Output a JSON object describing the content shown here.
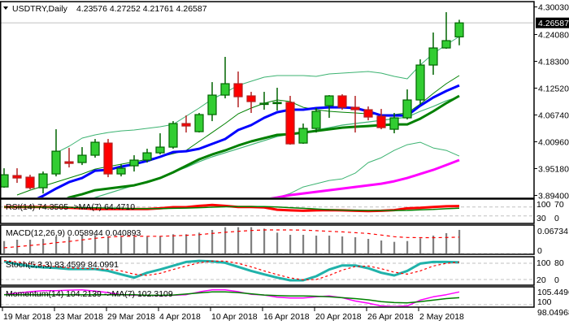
{
  "header": {
    "menu_icon": "triangle-down-icon",
    "symbol": "USDTRY,Daily",
    "ohlc": "4.23576 4.27252 4.21761 4.26587"
  },
  "colors": {
    "bull_body": "#32cd32",
    "bull_edge": "#006400",
    "bear_body": "#ff0000",
    "bear_edge": "#b22222",
    "blue_ma": "#0000ff",
    "green_ma": "#008000",
    "magenta_ma": "#ff00ff",
    "band": "#3cb371",
    "mid_band": "#008000",
    "grid_dash": "#c0c0c0",
    "macd_hist": "#808080",
    "stoch_main": "#20b2aa",
    "signal": "#ff0000"
  },
  "chart_data": {
    "type": "candlestick",
    "title": "USDTRY,Daily",
    "ylim": [
      3.894,
      4.3003
    ],
    "y_ticks": [
      "4.30030",
      "4.24080",
      "4.18300",
      "4.12520",
      "4.06740",
      "4.00960",
      "3.95180",
      "3.89400"
    ],
    "current_price": "4.26587",
    "current_price_value": 4.26587,
    "x_labels": [
      "19 Mar 2018",
      "23 Mar 2018",
      "29 Mar 2018",
      "4 Apr 2018",
      "10 Apr 2018",
      "16 Apr 2018",
      "20 Apr 2018",
      "26 Apr 2018",
      "2 May 2018"
    ],
    "candles_ohlc": [
      [
        3.9122,
        3.9525,
        3.9105,
        3.9385
      ],
      [
        3.9368,
        3.9525,
        3.921,
        3.9315
      ],
      [
        3.9333,
        3.9385,
        3.907,
        3.9105
      ],
      [
        3.9105,
        3.9455,
        3.8982,
        3.9403
      ],
      [
        3.9403,
        4.0366,
        3.935,
        3.9893
      ],
      [
        3.9665,
        3.9963,
        3.9543,
        3.963
      ],
      [
        3.9648,
        3.9981,
        3.9595,
        3.9806
      ],
      [
        3.9806,
        4.0156,
        3.9753,
        4.0086
      ],
      [
        4.0068,
        4.0156,
        3.9333,
        3.9403
      ],
      [
        3.9403,
        3.9613,
        3.935,
        3.9525
      ],
      [
        3.9578,
        3.9806,
        3.9455,
        3.9701
      ],
      [
        3.9701,
        3.9946,
        3.9648,
        3.9858
      ],
      [
        3.9858,
        4.0279,
        3.9823,
        3.9981
      ],
      [
        3.9981,
        4.0541,
        3.9946,
        4.0489
      ],
      [
        4.0489,
        4.0664,
        4.0296,
        4.0436
      ],
      [
        4.0314,
        4.0717,
        4.0296,
        4.0682
      ],
      [
        4.0682,
        4.1382,
        4.0541,
        4.1102
      ],
      [
        4.1102,
        4.1926,
        4.1032,
        4.1348
      ],
      [
        4.1348,
        4.161,
        4.0839,
        4.1067
      ],
      [
        4.1085,
        4.1172,
        4.0717,
        4.0962
      ],
      [
        4.0909,
        4.1172,
        4.0787,
        4.0927
      ],
      [
        4.0927,
        4.126,
        4.0769,
        4.0945
      ],
      [
        4.0945,
        4.1085,
        4.0033,
        4.0051
      ],
      [
        4.0068,
        4.0489,
        4.0051,
        4.0384
      ],
      [
        4.0384,
        4.0822,
        4.0296,
        4.0752
      ],
      [
        4.0874,
        4.1102,
        4.0612,
        4.1085
      ],
      [
        4.1085,
        4.112,
        4.0787,
        4.0839
      ],
      [
        4.0839,
        4.1085,
        4.0296,
        4.0787
      ],
      [
        4.0787,
        4.0857,
        4.0559,
        4.0629
      ],
      [
        4.0647,
        4.0804,
        4.0366,
        4.0401
      ],
      [
        4.0366,
        4.0717,
        4.0279,
        4.0612
      ],
      [
        4.0612,
        4.1225,
        4.0577,
        4.0997
      ],
      [
        4.0997,
        4.1873,
        4.0892,
        4.175
      ],
      [
        4.175,
        4.2451,
        4.154,
        4.2118
      ],
      [
        4.2118,
        4.2889,
        4.2101,
        4.2276
      ],
      [
        4.23576,
        4.27252,
        4.21761,
        4.26587
      ]
    ],
    "overlays": {
      "upper_band": [
        null,
        null,
        null,
        null,
        3.9858,
        4.0,
        4.0174,
        4.0244,
        4.0296,
        4.0331,
        4.0349,
        4.0384,
        4.0419,
        4.0471,
        4.0647,
        4.0822,
        4.1015,
        4.1155,
        4.1312,
        4.14,
        4.1488,
        4.1523,
        4.1523,
        4.1523,
        4.1505,
        4.1558,
        4.1575,
        4.1593,
        4.161,
        4.1575,
        4.1505,
        4.1453,
        4.175,
        4.1996,
        4.2189,
        4.2364
      ],
      "middle_band": [
        null,
        3.8948,
        3.9052,
        3.914,
        3.9228,
        3.9315,
        3.9403,
        3.9508,
        3.956,
        3.9613,
        3.9665,
        3.9718,
        3.9771,
        3.9841,
        3.9911,
        4.0104,
        4.0296,
        4.0489,
        4.0699,
        4.0822,
        4.0927,
        4.0997,
        4.0962,
        4.0839,
        4.0787,
        4.0752,
        4.0734,
        4.0717,
        4.0699,
        4.0682,
        4.0682,
        4.0717,
        4.0909,
        4.1137,
        4.1348,
        4.1523
      ],
      "lower_band": [
        null,
        null,
        null,
        null,
        null,
        null,
        null,
        null,
        null,
        null,
        null,
        null,
        null,
        null,
        null,
        null,
        null,
        null,
        null,
        null,
        3.886,
        3.8895,
        3.8982,
        3.9122,
        3.9193,
        3.9263,
        3.9298,
        3.942,
        3.9648,
        3.9753,
        3.9911,
        4.0033,
        4.0086,
        3.9963,
        3.9911,
        3.9788
      ],
      "blue_ma": [
        null,
        null,
        3.88,
        3.893,
        3.9087,
        3.9228,
        3.9315,
        3.9473,
        3.949,
        3.956,
        3.9613,
        3.9683,
        3.9771,
        3.9876,
        3.9893,
        3.9946,
        4.0051,
        4.0156,
        4.0349,
        4.0454,
        4.0612,
        4.0734,
        4.0787,
        4.0787,
        4.0822,
        4.0839,
        4.0839,
        4.0822,
        4.0752,
        4.0664,
        4.0664,
        4.0664,
        4.0874,
        4.105,
        4.119,
        4.1312
      ],
      "green_ma": [
        null,
        null,
        null,
        null,
        3.875,
        3.8895,
        3.8965,
        3.9052,
        3.9087,
        3.9122,
        3.9157,
        3.9228,
        3.9315,
        3.9438,
        3.9578,
        3.9718,
        3.9823,
        3.9911,
        4.0016,
        4.0104,
        4.0174,
        4.0244,
        4.0261,
        4.0296,
        4.0331,
        4.0366,
        4.0401,
        4.0419,
        4.0436,
        4.0454,
        4.0471,
        4.0471,
        4.0594,
        4.0752,
        4.0927,
        4.1085
      ],
      "light_ma": [
        null,
        null,
        null,
        null,
        null,
        null,
        3.88,
        3.8895,
        3.8982,
        3.907,
        3.9157,
        3.9245,
        3.9315,
        3.9438,
        3.9543,
        3.9665,
        3.9771,
        3.9858,
        3.9946,
        4.0033,
        4.0121,
        4.0209,
        4.0261,
        4.0296,
        4.0349,
        4.0401,
        4.0454,
        4.0489,
        4.0524,
        4.0559,
        4.0594,
        4.0629,
        4.0752,
        4.0857,
        4.0979,
        4.1067
      ],
      "magenta_ma": [
        null,
        null,
        null,
        null,
        null,
        null,
        null,
        null,
        null,
        null,
        null,
        null,
        null,
        null,
        null,
        null,
        null,
        null,
        null,
        null,
        3.885,
        3.8895,
        3.8947,
        3.8982,
        3.9017,
        3.9052,
        3.9087,
        3.9122,
        3.9157,
        3.9193,
        3.9245,
        3.9315,
        3.9403,
        3.949,
        3.9595,
        3.9701
      ]
    },
    "indicators": {
      "rsi": {
        "label": "RSI(14) 74.3505 ->MA(7) 64.4710",
        "levels": [
          70,
          30
        ],
        "range": [
          0,
          100
        ],
        "axis_labels": [
          "100",
          "70",
          "30",
          "0"
        ],
        "values": [
          70,
          70,
          70,
          70,
          69,
          66,
          64,
          61,
          61,
          61,
          61,
          61,
          64,
          69,
          69,
          75,
          79,
          75,
          70,
          70,
          68,
          58,
          55,
          53,
          55,
          56,
          55,
          53,
          52,
          53,
          56,
          64,
          66,
          70,
          73,
          74.35
        ],
        "ma": [
          70,
          70,
          70,
          69,
          69,
          68,
          67,
          66,
          65,
          64,
          63,
          63,
          63,
          64,
          65,
          67,
          69,
          71,
          72,
          72,
          72,
          70,
          67,
          64,
          61,
          58,
          56,
          55,
          54,
          54,
          54,
          55,
          57,
          59,
          62,
          64.47
        ]
      },
      "macd": {
        "label": "MACD(12,26,9) 0.058944 0.040893",
        "range": [
          0,
          0.06734
        ],
        "axis_labels": [
          "0.06734",
          "0"
        ],
        "histogram": [
          0.0311,
          0.0345,
          0.0345,
          0.0365,
          0.0426,
          0.0426,
          0.046,
          0.046,
          0.0433,
          0.042,
          0.042,
          0.042,
          0.0433,
          0.0481,
          0.0481,
          0.0521,
          0.0589,
          0.0657,
          0.0657,
          0.0657,
          0.0622,
          0.0521,
          0.0467,
          0.0467,
          0.0447,
          0.0447,
          0.0426,
          0.0406,
          0.0365,
          0.0325,
          0.0291,
          0.0311,
          0.0379,
          0.0447,
          0.0508,
          0.058944
        ],
        "signal": [
          0.0142,
          0.017,
          0.02,
          0.023,
          0.027,
          0.03,
          0.034,
          0.0379,
          0.041,
          0.043,
          0.0433,
          0.043,
          0.043,
          0.044,
          0.0455,
          0.047,
          0.0501,
          0.053,
          0.0555,
          0.0575,
          0.0589,
          0.0589,
          0.0589,
          0.0585,
          0.057,
          0.0555,
          0.054,
          0.052,
          0.05,
          0.046,
          0.042,
          0.04,
          0.0395,
          0.0395,
          0.04,
          0.040893
        ]
      },
      "stoch": {
        "label": "Stoch(5,3,3) 83.4599 84.0991",
        "levels": [
          80,
          20
        ],
        "range": [
          0,
          100
        ],
        "axis_labels": [
          "100",
          "80",
          "20",
          "0"
        ],
        "main": [
          87,
          77,
          69,
          65,
          63,
          59,
          59,
          59,
          52,
          39,
          27,
          45,
          57,
          71,
          85,
          89,
          87,
          82,
          67,
          52,
          39,
          27,
          17,
          17,
          32,
          57,
          72,
          72,
          62,
          45,
          35,
          52,
          79,
          85,
          85,
          83.46
        ],
        "signal": [
          90,
          85,
          78,
          72,
          67,
          63,
          61,
          60,
          58,
          52,
          40,
          35,
          43,
          57,
          70,
          82,
          88,
          88,
          80,
          67,
          52,
          38,
          26,
          19,
          20,
          35,
          55,
          68,
          70,
          60,
          47,
          40,
          52,
          70,
          80,
          84.1
        ]
      },
      "momentum": {
        "label": "Momentum(14) 104.2139 ->MA(7) 102.3109",
        "levels": [
          100
        ],
        "axis_labels": [
          "105.4496",
          "100",
          "98.04968"
        ],
        "values": [
          103.3,
          103.8,
          104.3,
          104.6,
          104.6,
          104.8,
          104.9,
          104.5,
          104.0,
          103.3,
          103.1,
          103.1,
          103.0,
          103.1,
          103.3,
          104.2,
          104.9,
          104.9,
          104.3,
          103.4,
          103.2,
          102.5,
          102.2,
          102.2,
          102.6,
          102.9,
          102.3,
          101.2,
          100.5,
          99.6,
          99.4,
          99.6,
          101.5,
          102.6,
          103.3,
          104.21
        ],
        "ma": [
          103.3,
          103.3,
          103.3,
          103.3,
          103.3,
          103.3,
          103.3,
          103.3,
          103.3,
          103.3,
          103.3,
          103.1,
          103.1,
          103.2,
          103.5,
          103.9,
          104.2,
          104.2,
          104.0,
          103.6,
          103.2,
          103.0,
          102.9,
          102.9,
          102.8,
          102.6,
          102.3,
          102.0,
          101.6,
          101.0,
          100.7,
          100.6,
          101.0,
          101.5,
          102.0,
          102.31
        ]
      }
    }
  }
}
